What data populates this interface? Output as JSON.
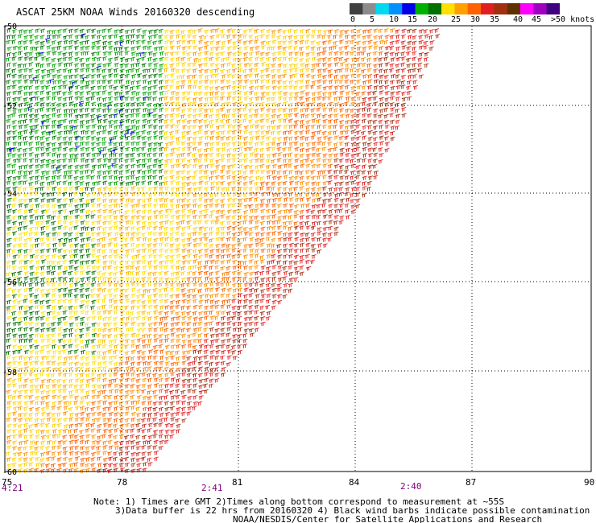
{
  "title": "ASCAT 25KM NOAA Winds 20160320 descending",
  "colorbar": {
    "labels": [
      "0",
      "5",
      "10",
      "15",
      "20",
      "25",
      "30",
      "35",
      "40",
      "45",
      ">50 knots"
    ],
    "colors": [
      "#404040",
      "#8c8c8c",
      "#00d8f0",
      "#0090ff",
      "#0000e8",
      "#00b000",
      "#007000",
      "#ffe000",
      "#ffa000",
      "#ff6000",
      "#e02020",
      "#a03010",
      "#603000",
      "#ff00ff",
      "#a000c0",
      "#400080"
    ]
  },
  "axes": {
    "lon_labels": [
      "75",
      "78",
      "81",
      "84",
      "87",
      "90"
    ],
    "lat_labels": [
      "-50",
      "-52",
      "-54",
      "-56",
      "-58",
      "-60"
    ]
  },
  "time_labels": [
    "4:21",
    "2:41",
    "2:40"
  ],
  "notes": {
    "line1": "Note: 1) Times are GMT 2)Times along bottom correspond to measurement at ~55S",
    "line2": "3)Data buffer is 22 hrs from 20160320 4) Black wind barbs indicate possible contamination",
    "line3": "NOAA/NESDIS/Center for Satellite Applications and Research"
  }
}
